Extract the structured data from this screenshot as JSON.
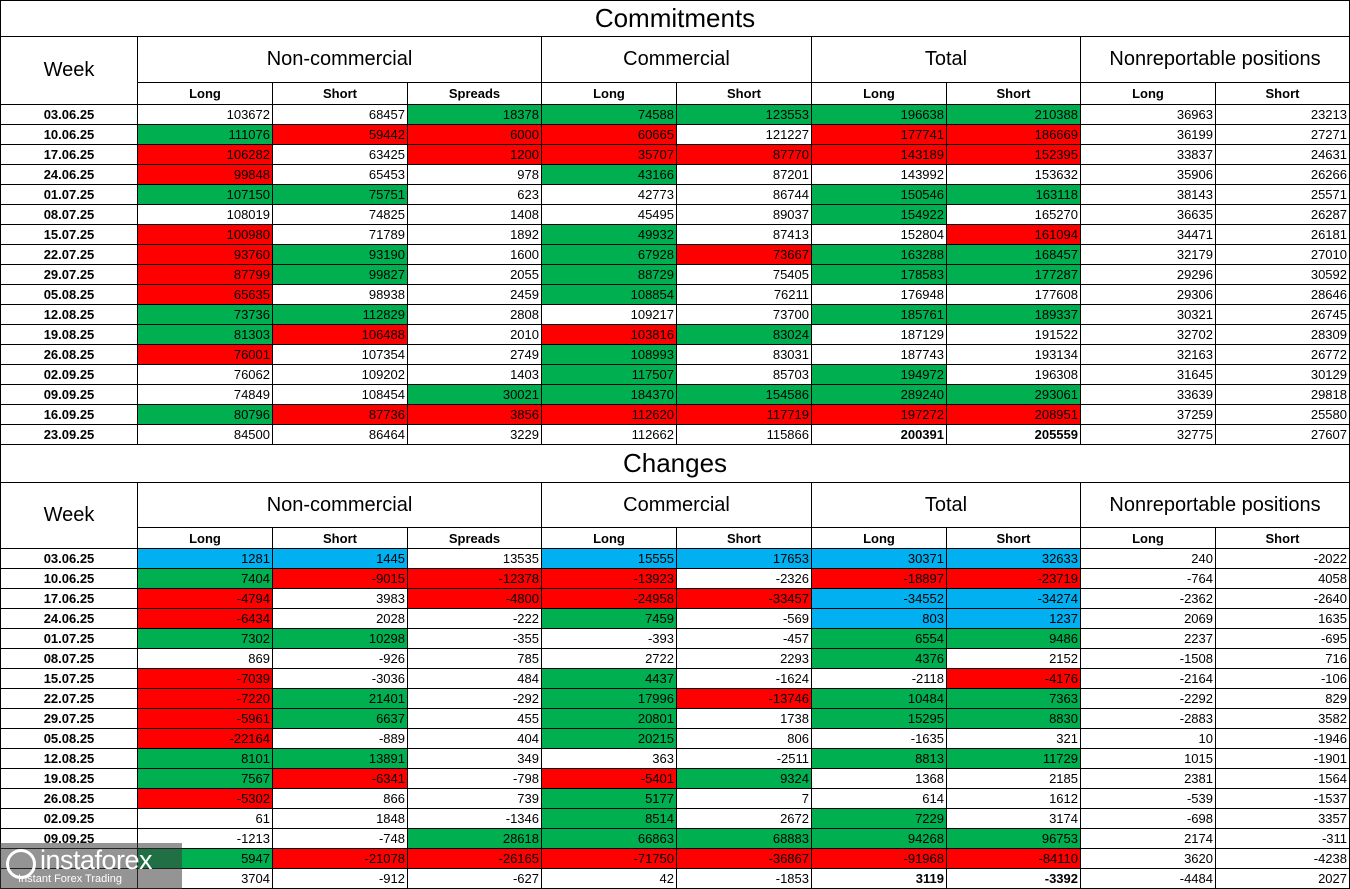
{
  "commitments": {
    "title": "Commitments",
    "week_header": "Week",
    "groups": [
      "Non-commercial",
      "Commercial",
      "Total",
      "Nonreportable positions"
    ],
    "subheaders": [
      "Long",
      "Short",
      "Spreads",
      "Long",
      "Short",
      "Long",
      "Short",
      "Long",
      "Short"
    ],
    "rows": [
      {
        "week": "03.06.25",
        "values": [
          103672,
          68457,
          18378,
          74588,
          123553,
          196638,
          210388,
          36963,
          23213
        ],
        "colors": [
          null,
          null,
          "#00b050",
          "#00b050",
          "#00b050",
          "#00b050",
          "#00b050",
          null,
          null
        ]
      },
      {
        "week": "10.06.25",
        "values": [
          111076,
          59442,
          6000,
          60665,
          121227,
          177741,
          186669,
          36199,
          27271
        ],
        "colors": [
          "#00b050",
          "#ff0000",
          "#ff0000",
          "#ff0000",
          null,
          "#ff0000",
          "#ff0000",
          null,
          null
        ]
      },
      {
        "week": "17.06.25",
        "values": [
          106282,
          63425,
          1200,
          35707,
          87770,
          143189,
          152395,
          33837,
          24631
        ],
        "colors": [
          "#ff0000",
          null,
          "#ff0000",
          "#ff0000",
          "#ff0000",
          "#ff0000",
          "#ff0000",
          null,
          null
        ]
      },
      {
        "week": "24.06.25",
        "values": [
          99848,
          65453,
          978,
          43166,
          87201,
          143992,
          153632,
          35906,
          26266
        ],
        "colors": [
          "#ff0000",
          null,
          null,
          "#00b050",
          null,
          null,
          null,
          null,
          null
        ]
      },
      {
        "week": "01.07.25",
        "values": [
          107150,
          75751,
          623,
          42773,
          86744,
          150546,
          163118,
          38143,
          25571
        ],
        "colors": [
          "#00b050",
          "#00b050",
          null,
          null,
          null,
          "#00b050",
          "#00b050",
          null,
          null
        ]
      },
      {
        "week": "08.07.25",
        "values": [
          108019,
          74825,
          1408,
          45495,
          89037,
          154922,
          165270,
          36635,
          26287
        ],
        "colors": [
          null,
          null,
          null,
          null,
          null,
          "#00b050",
          null,
          null,
          null
        ]
      },
      {
        "week": "15.07.25",
        "values": [
          100980,
          71789,
          1892,
          49932,
          87413,
          152804,
          161094,
          34471,
          26181
        ],
        "colors": [
          "#ff0000",
          null,
          null,
          "#00b050",
          null,
          null,
          "#ff0000",
          null,
          null
        ]
      },
      {
        "week": "22.07.25",
        "values": [
          93760,
          93190,
          1600,
          67928,
          73667,
          163288,
          168457,
          32179,
          27010
        ],
        "colors": [
          "#ff0000",
          "#00b050",
          null,
          "#00b050",
          "#ff0000",
          "#00b050",
          "#00b050",
          null,
          null
        ]
      },
      {
        "week": "29.07.25",
        "values": [
          87799,
          99827,
          2055,
          88729,
          75405,
          178583,
          177287,
          29296,
          30592
        ],
        "colors": [
          "#ff0000",
          "#00b050",
          null,
          "#00b050",
          null,
          "#00b050",
          "#00b050",
          null,
          null
        ]
      },
      {
        "week": "05.08.25",
        "values": [
          65635,
          98938,
          2459,
          108854,
          76211,
          176948,
          177608,
          29306,
          28646
        ],
        "colors": [
          "#ff0000",
          null,
          null,
          "#00b050",
          null,
          null,
          null,
          null,
          null
        ]
      },
      {
        "week": "12.08.25",
        "values": [
          73736,
          112829,
          2808,
          109217,
          73700,
          185761,
          189337,
          30321,
          26745
        ],
        "colors": [
          "#00b050",
          "#00b050",
          null,
          null,
          null,
          "#00b050",
          "#00b050",
          null,
          null
        ]
      },
      {
        "week": "19.08.25",
        "values": [
          81303,
          106488,
          2010,
          103816,
          83024,
          187129,
          191522,
          32702,
          28309
        ],
        "colors": [
          "#00b050",
          "#ff0000",
          null,
          "#ff0000",
          "#00b050",
          null,
          null,
          null,
          null
        ]
      },
      {
        "week": "26.08.25",
        "values": [
          76001,
          107354,
          2749,
          108993,
          83031,
          187743,
          193134,
          32163,
          26772
        ],
        "colors": [
          "#ff0000",
          null,
          null,
          "#00b050",
          null,
          null,
          null,
          null,
          null
        ]
      },
      {
        "week": "02.09.25",
        "values": [
          76062,
          109202,
          1403,
          117507,
          85703,
          194972,
          196308,
          31645,
          30129
        ],
        "colors": [
          null,
          null,
          null,
          "#00b050",
          null,
          "#00b050",
          null,
          null,
          null
        ]
      },
      {
        "week": "09.09.25",
        "values": [
          74849,
          108454,
          30021,
          184370,
          154586,
          289240,
          293061,
          33639,
          29818
        ],
        "colors": [
          null,
          null,
          "#00b050",
          "#00b050",
          "#00b050",
          "#00b050",
          "#00b050",
          null,
          null
        ]
      },
      {
        "week": "16.09.25",
        "values": [
          80796,
          87736,
          3856,
          112620,
          117719,
          197272,
          208951,
          37259,
          25580
        ],
        "colors": [
          "#00b050",
          "#ff0000",
          "#ff0000",
          "#ff0000",
          "#ff0000",
          "#ff0000",
          "#ff0000",
          null,
          null
        ]
      },
      {
        "week": "23.09.25",
        "values": [
          84500,
          86464,
          3229,
          112662,
          115866,
          200391,
          205559,
          32775,
          27607
        ],
        "colors": [
          null,
          null,
          null,
          null,
          null,
          null,
          null,
          null,
          null
        ]
      }
    ]
  },
  "changes": {
    "title": "Changes",
    "week_header": "Week",
    "groups": [
      "Non-commercial",
      "Commercial",
      "Total",
      "Nonreportable positions"
    ],
    "subheaders": [
      "Long",
      "Short",
      "Spreads",
      "Long",
      "Short",
      "Long",
      "Short",
      "Long",
      "Short"
    ],
    "rows": [
      {
        "week": "03.06.25",
        "values": [
          1281,
          1445,
          13535,
          15555,
          17653,
          30371,
          32633,
          240,
          -2022
        ],
        "colors": [
          "#00b0f0",
          "#00b0f0",
          null,
          "#00b0f0",
          "#00b0f0",
          "#00b0f0",
          "#00b0f0",
          null,
          null
        ]
      },
      {
        "week": "10.06.25",
        "values": [
          7404,
          -9015,
          -12378,
          -13923,
          -2326,
          -18897,
          -23719,
          -764,
          4058
        ],
        "colors": [
          "#00b050",
          "#ff0000",
          "#ff0000",
          "#ff0000",
          null,
          "#ff0000",
          "#ff0000",
          null,
          null
        ]
      },
      {
        "week": "17.06.25",
        "values": [
          -4794,
          3983,
          -4800,
          -24958,
          -33457,
          -34552,
          -34274,
          -2362,
          -2640
        ],
        "colors": [
          "#ff0000",
          null,
          "#ff0000",
          "#ff0000",
          "#ff0000",
          "#00b0f0",
          "#00b0f0",
          null,
          null
        ]
      },
      {
        "week": "24.06.25",
        "values": [
          -6434,
          2028,
          -222,
          7459,
          -569,
          803,
          1237,
          2069,
          1635
        ],
        "colors": [
          "#ff0000",
          null,
          null,
          "#00b050",
          null,
          "#00b0f0",
          "#00b0f0",
          null,
          null
        ]
      },
      {
        "week": "01.07.25",
        "values": [
          7302,
          10298,
          -355,
          -393,
          -457,
          6554,
          9486,
          2237,
          -695
        ],
        "colors": [
          "#00b050",
          "#00b050",
          null,
          null,
          null,
          "#00b050",
          "#00b050",
          null,
          null
        ]
      },
      {
        "week": "08.07.25",
        "values": [
          869,
          -926,
          785,
          2722,
          2293,
          4376,
          2152,
          -1508,
          716
        ],
        "colors": [
          null,
          null,
          null,
          null,
          null,
          "#00b050",
          null,
          null,
          null
        ]
      },
      {
        "week": "15.07.25",
        "values": [
          -7039,
          -3036,
          484,
          4437,
          -1624,
          -2118,
          -4176,
          -2164,
          -106
        ],
        "colors": [
          "#ff0000",
          null,
          null,
          "#00b050",
          null,
          null,
          "#ff0000",
          null,
          null
        ]
      },
      {
        "week": "22.07.25",
        "values": [
          -7220,
          21401,
          -292,
          17996,
          -13746,
          10484,
          7363,
          -2292,
          829
        ],
        "colors": [
          "#ff0000",
          "#00b050",
          null,
          "#00b050",
          "#ff0000",
          "#00b050",
          "#00b050",
          null,
          null
        ]
      },
      {
        "week": "29.07.25",
        "values": [
          -5961,
          6637,
          455,
          20801,
          1738,
          15295,
          8830,
          -2883,
          3582
        ],
        "colors": [
          "#ff0000",
          "#00b050",
          null,
          "#00b050",
          null,
          "#00b050",
          "#00b050",
          null,
          null
        ]
      },
      {
        "week": "05.08.25",
        "values": [
          -22164,
          -889,
          404,
          20215,
          806,
          -1635,
          321,
          10,
          -1946
        ],
        "colors": [
          "#ff0000",
          null,
          null,
          "#00b050",
          null,
          null,
          null,
          null,
          null
        ]
      },
      {
        "week": "12.08.25",
        "values": [
          8101,
          13891,
          349,
          363,
          -2511,
          8813,
          11729,
          1015,
          -1901
        ],
        "colors": [
          "#00b050",
          "#00b050",
          null,
          null,
          null,
          "#00b050",
          "#00b050",
          null,
          null
        ]
      },
      {
        "week": "19.08.25",
        "values": [
          7567,
          -6341,
          -798,
          -5401,
          9324,
          1368,
          2185,
          2381,
          1564
        ],
        "colors": [
          "#00b050",
          "#ff0000",
          null,
          "#ff0000",
          "#00b050",
          null,
          null,
          null,
          null
        ]
      },
      {
        "week": "26.08.25",
        "values": [
          -5302,
          866,
          739,
          5177,
          7,
          614,
          1612,
          -539,
          -1537
        ],
        "colors": [
          "#ff0000",
          null,
          null,
          "#00b050",
          null,
          null,
          null,
          null,
          null
        ]
      },
      {
        "week": "02.09.25",
        "values": [
          61,
          1848,
          -1346,
          8514,
          2672,
          7229,
          3174,
          -698,
          3357
        ],
        "colors": [
          null,
          null,
          null,
          "#00b050",
          null,
          "#00b050",
          null,
          null,
          null
        ]
      },
      {
        "week": "09.09.25",
        "values": [
          -1213,
          -748,
          28618,
          66863,
          68883,
          94268,
          96753,
          2174,
          -311
        ],
        "colors": [
          null,
          null,
          "#00b050",
          "#00b050",
          "#00b050",
          "#00b050",
          "#00b050",
          null,
          null
        ]
      },
      {
        "week": null,
        "values": [
          5947,
          -21078,
          -26165,
          -71750,
          -36867,
          -91968,
          -84110,
          3620,
          -4238
        ],
        "colors": [
          "#00b050",
          "#ff0000",
          "#ff0000",
          "#ff0000",
          "#ff0000",
          "#ff0000",
          "#ff0000",
          null,
          null
        ]
      },
      {
        "week": null,
        "values": [
          3704,
          -912,
          -627,
          42,
          -1853,
          3119,
          -3392,
          -4484,
          2027
        ],
        "colors": [
          null,
          null,
          null,
          null,
          null,
          null,
          null,
          null,
          null
        ]
      }
    ]
  },
  "watermark": {
    "brand": "instaforex",
    "tagline": "Instant Forex Trading"
  }
}
